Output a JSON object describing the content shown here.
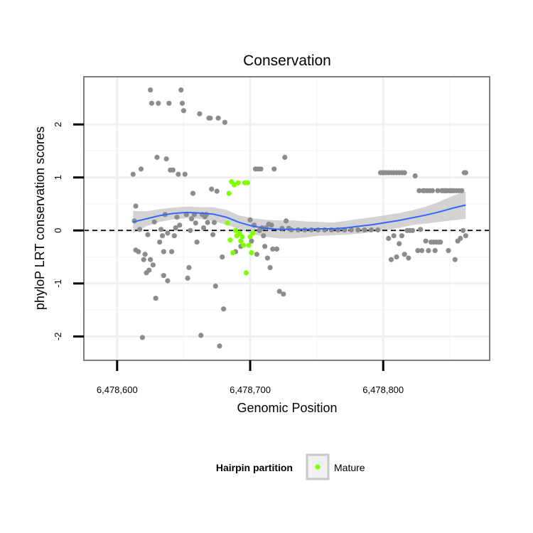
{
  "chart_data": {
    "type": "scatter",
    "title": "Conservation",
    "xlabel": "Genomic Position",
    "ylabel": "phyloP LRT conservation scores",
    "xlim": [
      6478575,
      6478880
    ],
    "ylim": [
      -2.45,
      2.9
    ],
    "x_ticks": [
      {
        "value": 6478600,
        "label": "6,478,600"
      },
      {
        "value": 6478700,
        "label": "6,478,700"
      },
      {
        "value": 6478800,
        "label": "6,478,800"
      }
    ],
    "y_ticks": [
      {
        "value": -2,
        "label": "-2"
      },
      {
        "value": -1,
        "label": "-1"
      },
      {
        "value": 0,
        "label": "0"
      },
      {
        "value": 1,
        "label": "1"
      },
      {
        "value": 2,
        "label": "2"
      }
    ],
    "grid": true,
    "reference_line": {
      "y": 0,
      "style": "dashed"
    },
    "colors": {
      "other": "#8c8c8c",
      "mature": "#7fff00",
      "smooth": "#3366ff",
      "band": "#c8c8c8"
    },
    "legend": {
      "title": "Hairpin partition",
      "placement": "bottom",
      "entries": [
        {
          "label": "Mature",
          "color": "#7fff00"
        }
      ]
    },
    "series": [
      {
        "name": "",
        "color": "#8c8c8c",
        "points": [
          [
            6478612,
            1.06
          ],
          [
            6478613,
            0.18
          ],
          [
            6478614,
            0.46
          ],
          [
            6478614,
            -0.37
          ],
          [
            6478616,
            -0.4
          ],
          [
            6478617,
            0.02
          ],
          [
            6478618,
            1.16
          ],
          [
            6478619,
            -2.02
          ],
          [
            6478620,
            -0.55
          ],
          [
            6478621,
            -0.45
          ],
          [
            6478622,
            -0.8
          ],
          [
            6478623,
            -0.08
          ],
          [
            6478624,
            -0.75
          ],
          [
            6478625,
            -0.55
          ],
          [
            6478625,
            2.65
          ],
          [
            6478626,
            2.4
          ],
          [
            6478627,
            -0.65
          ],
          [
            6478628,
            0.16
          ],
          [
            6478629,
            -1.28
          ],
          [
            6478630,
            1.38
          ],
          [
            6478631,
            2.4
          ],
          [
            6478632,
            -0.22
          ],
          [
            6478633,
            0.02
          ],
          [
            6478634,
            -0.1
          ],
          [
            6478635,
            -0.85
          ],
          [
            6478635,
            -0.4
          ],
          [
            6478636,
            0.3
          ],
          [
            6478637,
            1.35
          ],
          [
            6478638,
            -0.95
          ],
          [
            6478638,
            -0.05
          ],
          [
            6478639,
            2.4
          ],
          [
            6478640,
            1.14
          ],
          [
            6478641,
            -0.4
          ],
          [
            6478642,
            1.14
          ],
          [
            6478643,
            -0.1
          ],
          [
            6478644,
            0.05
          ],
          [
            6478645,
            0.25
          ],
          [
            6478646,
            1.06
          ],
          [
            6478647,
            0.1
          ],
          [
            6478648,
            2.65
          ],
          [
            6478649,
            2.4
          ],
          [
            6478650,
            2.26
          ],
          [
            6478651,
            1.06
          ],
          [
            6478652,
            0.3
          ],
          [
            6478653,
            -0.9
          ],
          [
            6478654,
            -0.7
          ],
          [
            6478655,
            0.0
          ],
          [
            6478656,
            0.22
          ],
          [
            6478657,
            0.7
          ],
          [
            6478658,
            0.3
          ],
          [
            6478659,
            0.14
          ],
          [
            6478660,
            -0.22
          ],
          [
            6478662,
            2.2
          ],
          [
            6478663,
            -1.98
          ],
          [
            6478664,
            0.3
          ],
          [
            6478665,
            0.05
          ],
          [
            6478666,
            0.26
          ],
          [
            6478667,
            0.3
          ],
          [
            6478668,
            0.15
          ],
          [
            6478669,
            2.12
          ],
          [
            6478670,
            2.12
          ],
          [
            6478671,
            0.78
          ],
          [
            6478672,
            -0.08
          ],
          [
            6478673,
            0.15
          ],
          [
            6478674,
            -1.05
          ],
          [
            6478675,
            0.74
          ],
          [
            6478676,
            2.12
          ],
          [
            6478677,
            -2.18
          ],
          [
            6478679,
            -0.5
          ],
          [
            6478680,
            -1.48
          ],
          [
            6478681,
            2.04
          ],
          [
            6478689,
            -0.4
          ],
          [
            6478693,
            -0.3
          ],
          [
            6478700,
            0.2
          ],
          [
            6478701,
            -0.2
          ],
          [
            6478703,
            0.1
          ],
          [
            6478704,
            1.16
          ],
          [
            6478705,
            -0.45
          ],
          [
            6478706,
            1.16
          ],
          [
            6478707,
            0.0
          ],
          [
            6478708,
            1.16
          ],
          [
            6478709,
            0.05
          ],
          [
            6478710,
            -0.1
          ],
          [
            6478711,
            -0.3
          ],
          [
            6478712,
            0.05
          ],
          [
            6478713,
            -0.52
          ],
          [
            6478714,
            0.12
          ],
          [
            6478715,
            -0.7
          ],
          [
            6478716,
            0.1
          ],
          [
            6478717,
            -0.35
          ],
          [
            6478718,
            1.16
          ],
          [
            6478720,
            -0.35
          ],
          [
            6478722,
            -1.15
          ],
          [
            6478724,
            0.04
          ],
          [
            6478725,
            -1.2
          ],
          [
            6478726,
            1.38
          ],
          [
            6478727,
            0.18
          ],
          [
            6478729,
            0.04
          ],
          [
            6478731,
            0.01
          ],
          [
            6478736,
            0.01
          ],
          [
            6478741,
            0.01
          ],
          [
            6478746,
            0.01
          ],
          [
            6478751,
            0.01
          ],
          [
            6478756,
            0.01
          ],
          [
            6478761,
            0.01
          ],
          [
            6478766,
            0.01
          ],
          [
            6478771,
            0.01
          ],
          [
            6478776,
            0.01
          ],
          [
            6478781,
            0.01
          ],
          [
            6478786,
            0.01
          ],
          [
            6478791,
            0.01
          ],
          [
            6478796,
            0.01
          ],
          [
            6478798,
            1.09
          ],
          [
            6478800,
            1.09
          ],
          [
            6478802,
            1.09
          ],
          [
            6478804,
            1.09
          ],
          [
            6478806,
            1.09
          ],
          [
            6478808,
            1.09
          ],
          [
            6478810,
            1.09
          ],
          [
            6478812,
            1.09
          ],
          [
            6478814,
            1.09
          ],
          [
            6478816,
            1.09
          ],
          [
            6478804,
            -0.15
          ],
          [
            6478806,
            -0.55
          ],
          [
            6478808,
            -0.1
          ],
          [
            6478810,
            -0.5
          ],
          [
            6478812,
            -0.25
          ],
          [
            6478814,
            -0.1
          ],
          [
            6478816,
            -0.45
          ],
          [
            6478818,
            0.0
          ],
          [
            6478819,
            -0.52
          ],
          [
            6478820,
            0.0
          ],
          [
            6478822,
            0.0
          ],
          [
            6478824,
            1.03
          ],
          [
            6478826,
            -0.38
          ],
          [
            6478827,
            0.75
          ],
          [
            6478828,
            0.02
          ],
          [
            6478829,
            -0.38
          ],
          [
            6478830,
            0.75
          ],
          [
            6478831,
            0.75
          ],
          [
            6478832,
            -0.2
          ],
          [
            6478833,
            0.75
          ],
          [
            6478834,
            -0.38
          ],
          [
            6478835,
            0.75
          ],
          [
            6478836,
            -0.22
          ],
          [
            6478837,
            0.75
          ],
          [
            6478838,
            -0.22
          ],
          [
            6478839,
            -0.38
          ],
          [
            6478840,
            -0.22
          ],
          [
            6478841,
            0.75
          ],
          [
            6478842,
            -0.22
          ],
          [
            6478843,
            -0.22
          ],
          [
            6478844,
            0.75
          ],
          [
            6478845,
            0.75
          ],
          [
            6478846,
            0.75
          ],
          [
            6478847,
            0.75
          ],
          [
            6478848,
            0.75
          ],
          [
            6478849,
            -0.38
          ],
          [
            6478850,
            0.75
          ],
          [
            6478851,
            0.75
          ],
          [
            6478852,
            0.75
          ],
          [
            6478853,
            0.75
          ],
          [
            6478854,
            -0.55
          ],
          [
            6478855,
            0.75
          ],
          [
            6478856,
            -0.2
          ],
          [
            6478857,
            0.75
          ],
          [
            6478858,
            -0.15
          ],
          [
            6478859,
            0.75
          ],
          [
            6478860,
            0.0
          ],
          [
            6478861,
            1.09
          ],
          [
            6478862,
            -0.1
          ],
          [
            6478862,
            1.09
          ]
        ]
      },
      {
        "name": "Mature",
        "color": "#7fff00",
        "points": [
          [
            6478683,
            0.14
          ],
          [
            6478684,
            0.7
          ],
          [
            6478685,
            -0.18
          ],
          [
            6478686,
            0.92
          ],
          [
            6478687,
            -0.42
          ],
          [
            6478688,
            0.86
          ],
          [
            6478689,
            0.0
          ],
          [
            6478690,
            -0.1
          ],
          [
            6478691,
            0.9
          ],
          [
            6478692,
            -0.05
          ],
          [
            6478693,
            -0.2
          ],
          [
            6478694,
            -0.12
          ],
          [
            6478695,
            -0.28
          ],
          [
            6478696,
            0.9
          ],
          [
            6478697,
            -0.8
          ],
          [
            6478698,
            0.9
          ],
          [
            6478699,
            -0.28
          ],
          [
            6478700,
            -0.12
          ],
          [
            6478701,
            -0.42
          ],
          [
            6478702,
            -0.05
          ]
        ]
      }
    ],
    "smooth": {
      "x": [
        6478612,
        6478622,
        6478632,
        6478642,
        6478652,
        6478662,
        6478672,
        6478682,
        6478692,
        6478702,
        6478712,
        6478722,
        6478732,
        6478742,
        6478752,
        6478762,
        6478772,
        6478782,
        6478792,
        6478802,
        6478812,
        6478822,
        6478832,
        6478842,
        6478852,
        6478862
      ],
      "y": [
        0.16,
        0.22,
        0.28,
        0.32,
        0.34,
        0.33,
        0.31,
        0.25,
        0.15,
        0.08,
        0.04,
        0.02,
        0.02,
        0.02,
        0.03,
        0.03,
        0.05,
        0.08,
        0.11,
        0.15,
        0.19,
        0.24,
        0.29,
        0.35,
        0.42,
        0.48
      ],
      "lower": [
        -0.05,
        0.08,
        0.16,
        0.21,
        0.23,
        0.22,
        0.18,
        0.11,
        0.02,
        -0.07,
        -0.12,
        -0.15,
        -0.15,
        -0.13,
        -0.1,
        -0.09,
        -0.08,
        -0.06,
        -0.03,
        0.01,
        0.05,
        0.1,
        0.13,
        0.16,
        0.19,
        0.22
      ],
      "upper": [
        0.37,
        0.36,
        0.4,
        0.43,
        0.45,
        0.44,
        0.44,
        0.39,
        0.28,
        0.23,
        0.2,
        0.19,
        0.19,
        0.17,
        0.16,
        0.15,
        0.18,
        0.22,
        0.25,
        0.29,
        0.33,
        0.38,
        0.45,
        0.54,
        0.65,
        0.74
      ]
    }
  }
}
